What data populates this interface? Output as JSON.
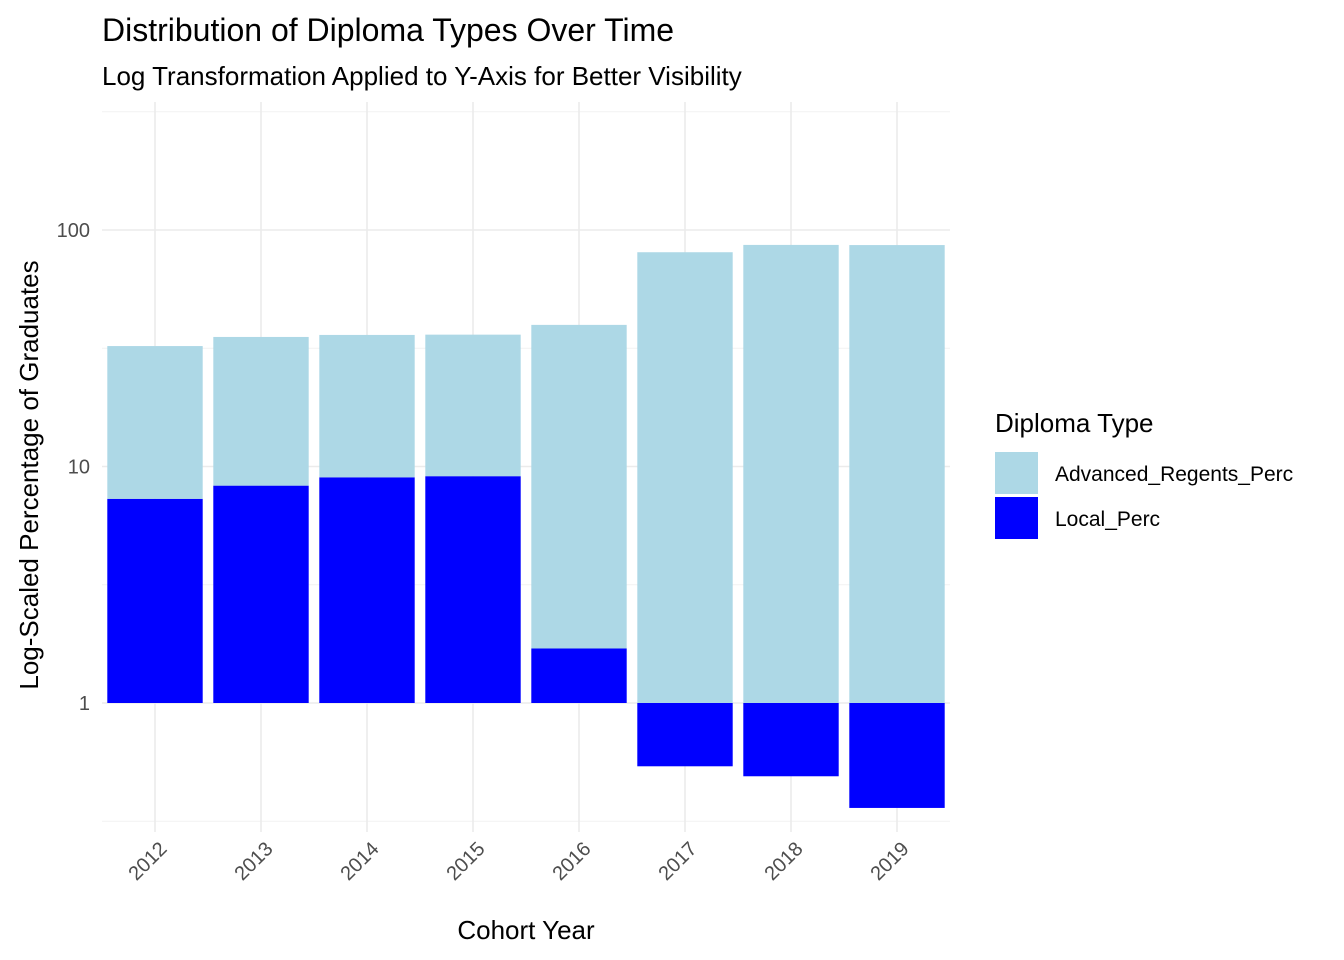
{
  "chart_data": {
    "type": "bar",
    "stacked": true,
    "y_scale": "log10",
    "title": "Distribution of Diploma Types Over Time",
    "subtitle": "Log Transformation Applied to Y-Axis for Better Visibility",
    "xlabel": "Cohort Year",
    "ylabel": "Log-Scaled Percentage of Graduates",
    "categories": [
      "2012",
      "2013",
      "2014",
      "2015",
      "2016",
      "2017",
      "2018",
      "2019"
    ],
    "yticks": [
      1,
      10,
      100
    ],
    "ytick_labels": [
      "1",
      "10",
      "100"
    ],
    "ylim": [
      0.25,
      400
    ],
    "grid": true,
    "legend": {
      "title": "Diploma Type",
      "position": "right"
    },
    "series": [
      {
        "name": "Advanced_Regents_Perc",
        "color": "#add8e6",
        "values": [
          25,
          27,
          27,
          27,
          38,
          80,
          86,
          86
        ]
      },
      {
        "name": "Local_Perc",
        "color": "#0000ff",
        "values": [
          7.3,
          8.3,
          9.0,
          9.1,
          1.7,
          0.54,
          0.49,
          0.36
        ]
      }
    ]
  }
}
